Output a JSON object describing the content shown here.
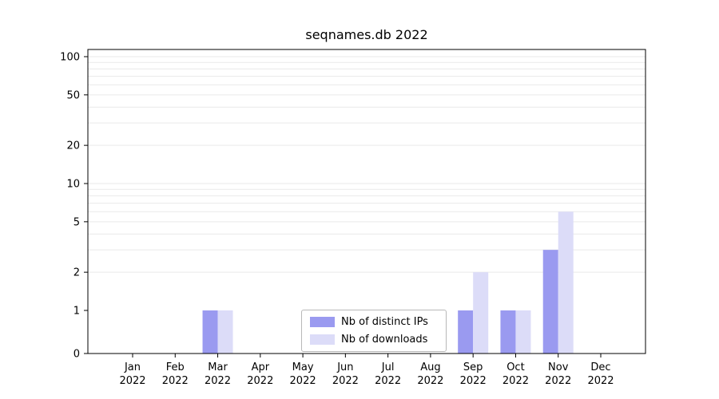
{
  "title": "seqnames.db 2022",
  "chart_data": {
    "type": "bar",
    "title": "seqnames.db 2022",
    "categories": [
      "Jan 2022",
      "Feb 2022",
      "Mar 2022",
      "Apr 2022",
      "May 2022",
      "Jun 2022",
      "Jul 2022",
      "Aug 2022",
      "Sep 2022",
      "Oct 2022",
      "Nov 2022",
      "Dec 2022"
    ],
    "series": [
      {
        "name": "Nb of distinct IPs",
        "color": "#9a9af0",
        "values": [
          0,
          0,
          1,
          0,
          0,
          0,
          0,
          0,
          1,
          1,
          3,
          0
        ]
      },
      {
        "name": "Nb of downloads",
        "color": "#dcdcf8",
        "values": [
          0,
          0,
          1,
          0,
          0,
          0,
          0,
          0,
          2,
          1,
          6,
          0
        ]
      }
    ],
    "y_ticks": [
      0,
      1,
      2,
      5,
      10,
      20,
      50,
      100
    ],
    "y_tick_labels": [
      "0",
      "1",
      "2",
      "5",
      "10",
      "20",
      "50",
      "100"
    ],
    "y_scale": "symlog",
    "ylim_top": 115,
    "grid": true,
    "grid_color": "#e9e9e9",
    "axis_color": "#000000",
    "legend_position": "lower center"
  }
}
